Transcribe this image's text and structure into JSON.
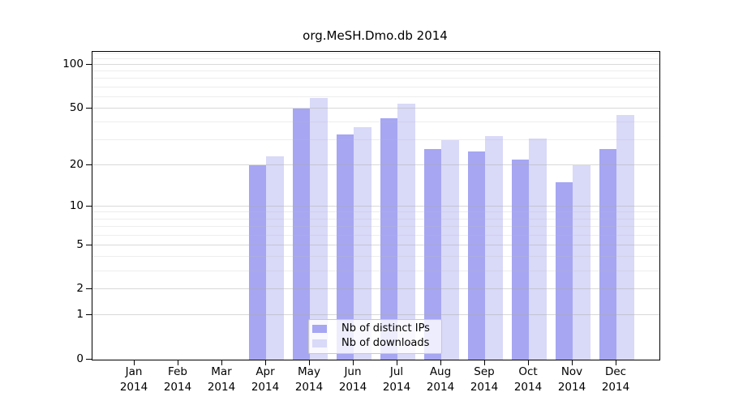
{
  "chart_data": {
    "type": "bar",
    "title": "org.MeSH.Dmo.db 2014",
    "categories": [
      "Jan",
      "Feb",
      "Mar",
      "Apr",
      "May",
      "Jun",
      "Jul",
      "Aug",
      "Sep",
      "Oct",
      "Nov",
      "Dec"
    ],
    "year_label": "2014",
    "series": [
      {
        "name": "Nb of distinct IPs",
        "color": "#a6a6f2",
        "values": [
          0,
          0,
          0,
          20,
          50,
          33,
          43,
          26,
          25,
          22,
          15,
          26
        ]
      },
      {
        "name": "Nb of downloads",
        "color": "#d9d9f8",
        "values": [
          0,
          0,
          0,
          23,
          59,
          37,
          54,
          30,
          32,
          31,
          20,
          45
        ]
      }
    ],
    "xlabel": "",
    "ylabel": "",
    "yscale": "log10(1+x)",
    "ytick_labels": [
      "0",
      "1",
      "2",
      "5",
      "10",
      "20",
      "50",
      "100"
    ],
    "yticks": [
      0,
      1,
      2,
      5,
      10,
      20,
      50,
      100
    ],
    "yminor_ticks": [
      3,
      4,
      6,
      7,
      8,
      9,
      30,
      40,
      60,
      70,
      80,
      90,
      110,
      120
    ],
    "ylim": [
      0,
      123
    ],
    "grid": true,
    "legend_position": "bottom-center"
  },
  "colors": {
    "background": "#ffffff",
    "axis": "#000000",
    "bar_distinct_ips": "#a6a6f2",
    "bar_downloads": "#d9d9f8",
    "grid_major": "#d9d9d9",
    "grid_minor": "#ececec",
    "legend_border": "#c9c9c9"
  }
}
